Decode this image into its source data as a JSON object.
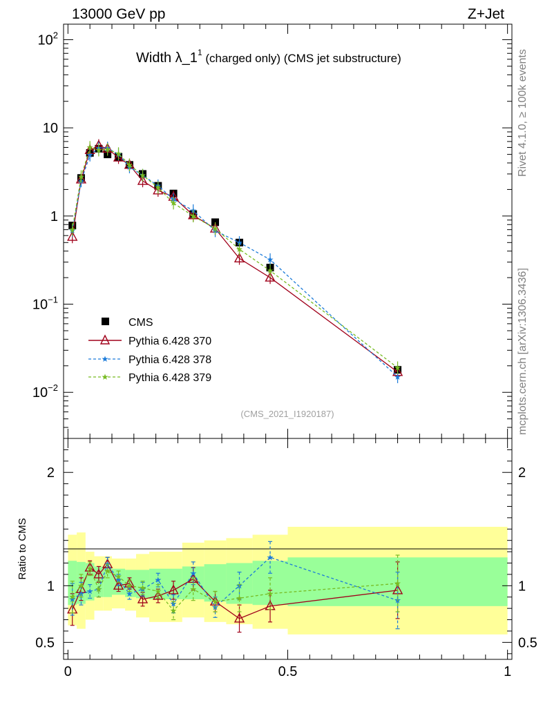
{
  "header": {
    "energy_label": "13000 GeV pp",
    "process_label": "Z+Jet"
  },
  "side_labels": {
    "rivet": "Rivet 4.1.0, ≥ 100k events",
    "site": "mcplots.cern.ch [arXiv:1306.3436]"
  },
  "chart_data": {
    "type": "line",
    "title_main": "Width λ_1",
    "title_sup": "1",
    "title_rest": " (charged only) (CMS jet substructure)",
    "analysis_id": "(CMS_2021_I1920187)",
    "x": [
      0.01,
      0.03,
      0.05,
      0.07,
      0.09,
      0.115,
      0.14,
      0.17,
      0.205,
      0.24,
      0.285,
      0.335,
      0.39,
      0.46,
      0.75
    ],
    "xlim": [
      -0.01,
      1.01
    ],
    "x_ticks": [
      "0",
      "0.5",
      "1"
    ],
    "main_panel": {
      "yscale": "log",
      "ylim": [
        0.003,
        150
      ],
      "y_ticks": [
        {
          "base": "10",
          "exp": "2",
          "value": 100
        },
        {
          "base": "10",
          "exp": "",
          "value": 10
        },
        {
          "base": "1",
          "exp": "",
          "value": 1
        },
        {
          "base": "10",
          "exp": "−1",
          "value": 0.1
        },
        {
          "base": "10",
          "exp": "−2",
          "value": 0.01
        }
      ]
    },
    "ratio_panel": {
      "ylabel": "Ratio to CMS",
      "ylim": [
        0.35,
        2.3
      ],
      "y_ticks": [
        "0.5",
        "1",
        "2"
      ],
      "band_edges": [
        0,
        0.02,
        0.04,
        0.06,
        0.08,
        0.1,
        0.13,
        0.155,
        0.185,
        0.225,
        0.26,
        0.31,
        0.36,
        0.42,
        0.5,
        1.0
      ],
      "band_inner": [
        [
          0.83,
          1.22
        ],
        [
          0.84,
          1.21
        ],
        [
          0.87,
          1.2
        ],
        [
          0.9,
          1.17
        ],
        [
          0.9,
          1.17
        ],
        [
          0.92,
          1.15
        ],
        [
          0.9,
          1.14
        ],
        [
          0.89,
          1.14
        ],
        [
          0.88,
          1.15
        ],
        [
          0.88,
          1.15
        ],
        [
          0.88,
          1.17
        ],
        [
          0.86,
          1.19
        ],
        [
          0.84,
          1.2
        ],
        [
          0.83,
          1.22
        ],
        [
          0.82,
          1.25
        ]
      ],
      "band_outer": [
        [
          0.65,
          1.45
        ],
        [
          0.62,
          1.47
        ],
        [
          0.7,
          1.3
        ],
        [
          0.78,
          1.26
        ],
        [
          0.78,
          1.26
        ],
        [
          0.8,
          1.24
        ],
        [
          0.78,
          1.24
        ],
        [
          0.72,
          1.28
        ],
        [
          0.68,
          1.3
        ],
        [
          0.68,
          1.3
        ],
        [
          0.72,
          1.38
        ],
        [
          0.68,
          1.4
        ],
        [
          0.66,
          1.42
        ],
        [
          0.62,
          1.45
        ],
        [
          0.57,
          1.52
        ]
      ]
    },
    "series": [
      {
        "name": "CMS",
        "color": "#000000",
        "style": "square",
        "values": [
          0.78,
          2.7,
          5.2,
          5.8,
          5.0,
          4.7,
          3.8,
          3.0,
          2.2,
          1.8,
          1.05,
          0.85,
          0.5,
          0.26,
          0.018
        ]
      },
      {
        "name": "Pythia 6.428 370",
        "color": "#a0001a",
        "style": "triangle-solid",
        "values": [
          0.58,
          2.6,
          5.6,
          6.3,
          5.8,
          4.6,
          3.8,
          2.5,
          1.95,
          1.65,
          1.02,
          0.72,
          0.33,
          0.2,
          0.017
        ],
        "ratio": [
          0.79,
          0.97,
          1.16,
          1.1,
          1.19,
          1.0,
          1.02,
          0.88,
          0.91,
          0.96,
          1.06,
          0.86,
          0.71,
          0.82,
          0.96
        ],
        "ratio_err": [
          0.14,
          0.1,
          0.06,
          0.07,
          0.06,
          0.05,
          0.05,
          0.06,
          0.06,
          0.08,
          0.1,
          0.09,
          0.12,
          0.14,
          0.25
        ]
      },
      {
        "name": "Pythia 6.428 378",
        "color": "#1a7ad9",
        "style": "star-dashed",
        "values": [
          0.68,
          2.5,
          4.9,
          5.9,
          5.9,
          5.0,
          3.6,
          2.9,
          2.2,
          1.55,
          1.15,
          0.68,
          0.5,
          0.32,
          0.015
        ],
        "ratio": [
          0.88,
          0.93,
          0.95,
          0.97,
          1.19,
          1.05,
          0.93,
          0.97,
          1.05,
          0.84,
          1.11,
          0.81,
          1.0,
          1.25,
          0.87
        ],
        "ratio_err": [
          0.14,
          0.1,
          0.06,
          0.07,
          0.06,
          0.05,
          0.05,
          0.06,
          0.06,
          0.08,
          0.1,
          0.09,
          0.12,
          0.14,
          0.25
        ]
      },
      {
        "name": "Pythia 6.428 379",
        "color": "#77bb22",
        "style": "star-dashed",
        "values": [
          0.7,
          2.8,
          6.0,
          5.6,
          5.7,
          5.1,
          3.8,
          2.9,
          2.1,
          1.4,
          1.0,
          0.72,
          0.42,
          0.24,
          0.019
        ],
        "ratio": [
          0.9,
          1.0,
          1.15,
          0.97,
          1.13,
          1.08,
          1.0,
          0.98,
          0.95,
          0.78,
          0.97,
          0.86,
          0.89,
          0.93,
          1.02
        ],
        "ratio_err": [
          0.14,
          0.1,
          0.06,
          0.07,
          0.06,
          0.05,
          0.05,
          0.06,
          0.06,
          0.08,
          0.1,
          0.09,
          0.12,
          0.14,
          0.25
        ]
      }
    ]
  }
}
